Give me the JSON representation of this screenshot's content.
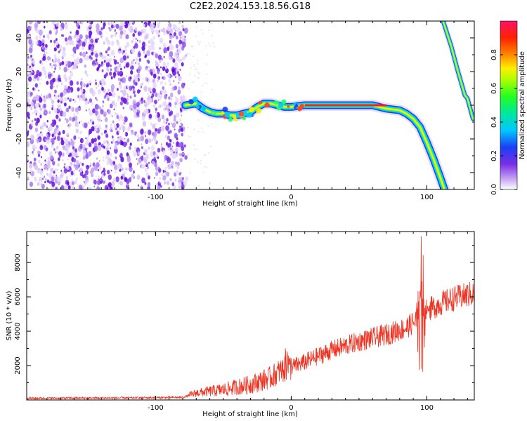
{
  "title": "C2E2.2024.153.18.56.G18",
  "chart_data": [
    {
      "type": "heatmap",
      "xlabel": "Height of straight line (km)",
      "ylabel": "Frequency (Hz)",
      "xlim": [
        -195,
        135
      ],
      "ylim": [
        -50,
        50
      ],
      "x_ticks": [
        -100,
        0,
        100
      ],
      "y_ticks": [
        -40,
        -20,
        0,
        20,
        40
      ],
      "noise_region_x": [
        -195,
        -77
      ],
      "ridge": {
        "x": [
          -78,
          -70,
          -65,
          -60,
          -55,
          -50,
          -45,
          -40,
          -35,
          -30,
          -25,
          -20,
          -15,
          -10,
          -5,
          0,
          10,
          20,
          40,
          60,
          70,
          80,
          85,
          90,
          95,
          100,
          105,
          110,
          113
        ],
        "freq": [
          0,
          1,
          -2,
          -4,
          -5,
          -5,
          -6,
          -6,
          -5,
          -4,
          -1,
          1,
          1,
          0,
          -1,
          -1,
          0,
          0,
          0,
          0,
          -2,
          -3,
          -5,
          -8,
          -13,
          -22,
          -32,
          -43,
          -50
        ]
      },
      "upper_branch": {
        "x": [
          112,
          118,
          123,
          128,
          130,
          132,
          134
        ],
        "freq": [
          50,
          35,
          20,
          6,
          4,
          -2,
          -8
        ]
      },
      "colorbar": {
        "label": "Normalized spectral amplitude",
        "ticks": [
          0.0,
          0.2,
          0.4,
          0.6,
          0.8
        ],
        "range": [
          0,
          1
        ]
      }
    },
    {
      "type": "line",
      "xlabel": "Height of straight line (km)",
      "ylabel": "SNR (10 * v/v)",
      "xlim": [
        -195,
        135
      ],
      "ylim": [
        0,
        9800
      ],
      "x_ticks": [
        -100,
        0,
        100
      ],
      "y_ticks": [
        2000,
        4000,
        6000,
        8000
      ],
      "color": "#ee3322",
      "trend": {
        "x": [
          -195,
          -120,
          -80,
          -70,
          -50,
          -30,
          -15,
          -8,
          0,
          10,
          30,
          50,
          70,
          85,
          90,
          95,
          100,
          110,
          120,
          135
        ],
        "y": [
          100,
          120,
          150,
          400,
          600,
          900,
          1300,
          1700,
          1900,
          2200,
          2900,
          3400,
          3800,
          4200,
          4500,
          4800,
          5200,
          5600,
          5900,
          6200
        ]
      },
      "spike_x": 96,
      "spike_max": 9800,
      "spike_min": 1600
    }
  ]
}
